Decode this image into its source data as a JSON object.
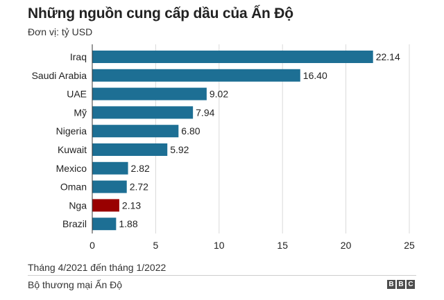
{
  "header": {
    "title": "Những nguồn cung cấp dầu của Ấn Độ",
    "subtitle": "Đơn vị: tỷ USD"
  },
  "footer": {
    "period": "Tháng 4/2021 đến tháng 1/2022",
    "source": "Bộ thương mại Ấn Độ",
    "logo_letters": [
      "B",
      "B",
      "C"
    ]
  },
  "colors": {
    "bar": "#1d6f94",
    "highlight": "#990000",
    "grid": "#d9d9d9",
    "text": "#222222"
  },
  "chart_data": {
    "type": "bar",
    "orientation": "horizontal",
    "title": "Những nguồn cung cấp dầu của Ấn Độ",
    "subtitle": "Đơn vị: tỷ USD",
    "categories": [
      "Iraq",
      "Saudi Arabia",
      "UAE",
      "Mỹ",
      "Nigeria",
      "Kuwait",
      "Mexico",
      "Oman",
      "Nga",
      "Brazil"
    ],
    "values": [
      22.14,
      16.4,
      9.02,
      7.94,
      6.8,
      5.92,
      2.82,
      2.72,
      2.13,
      1.88
    ],
    "value_labels": [
      "22.14",
      "16.40",
      "9.02",
      "7.94",
      "6.80",
      "5.92",
      "2.82",
      "2.72",
      "2.13",
      "1.88"
    ],
    "highlight_category": "Nga",
    "xlim": [
      0,
      25
    ],
    "xticks": [
      0,
      5,
      10,
      15,
      20,
      25
    ],
    "grid": true
  }
}
